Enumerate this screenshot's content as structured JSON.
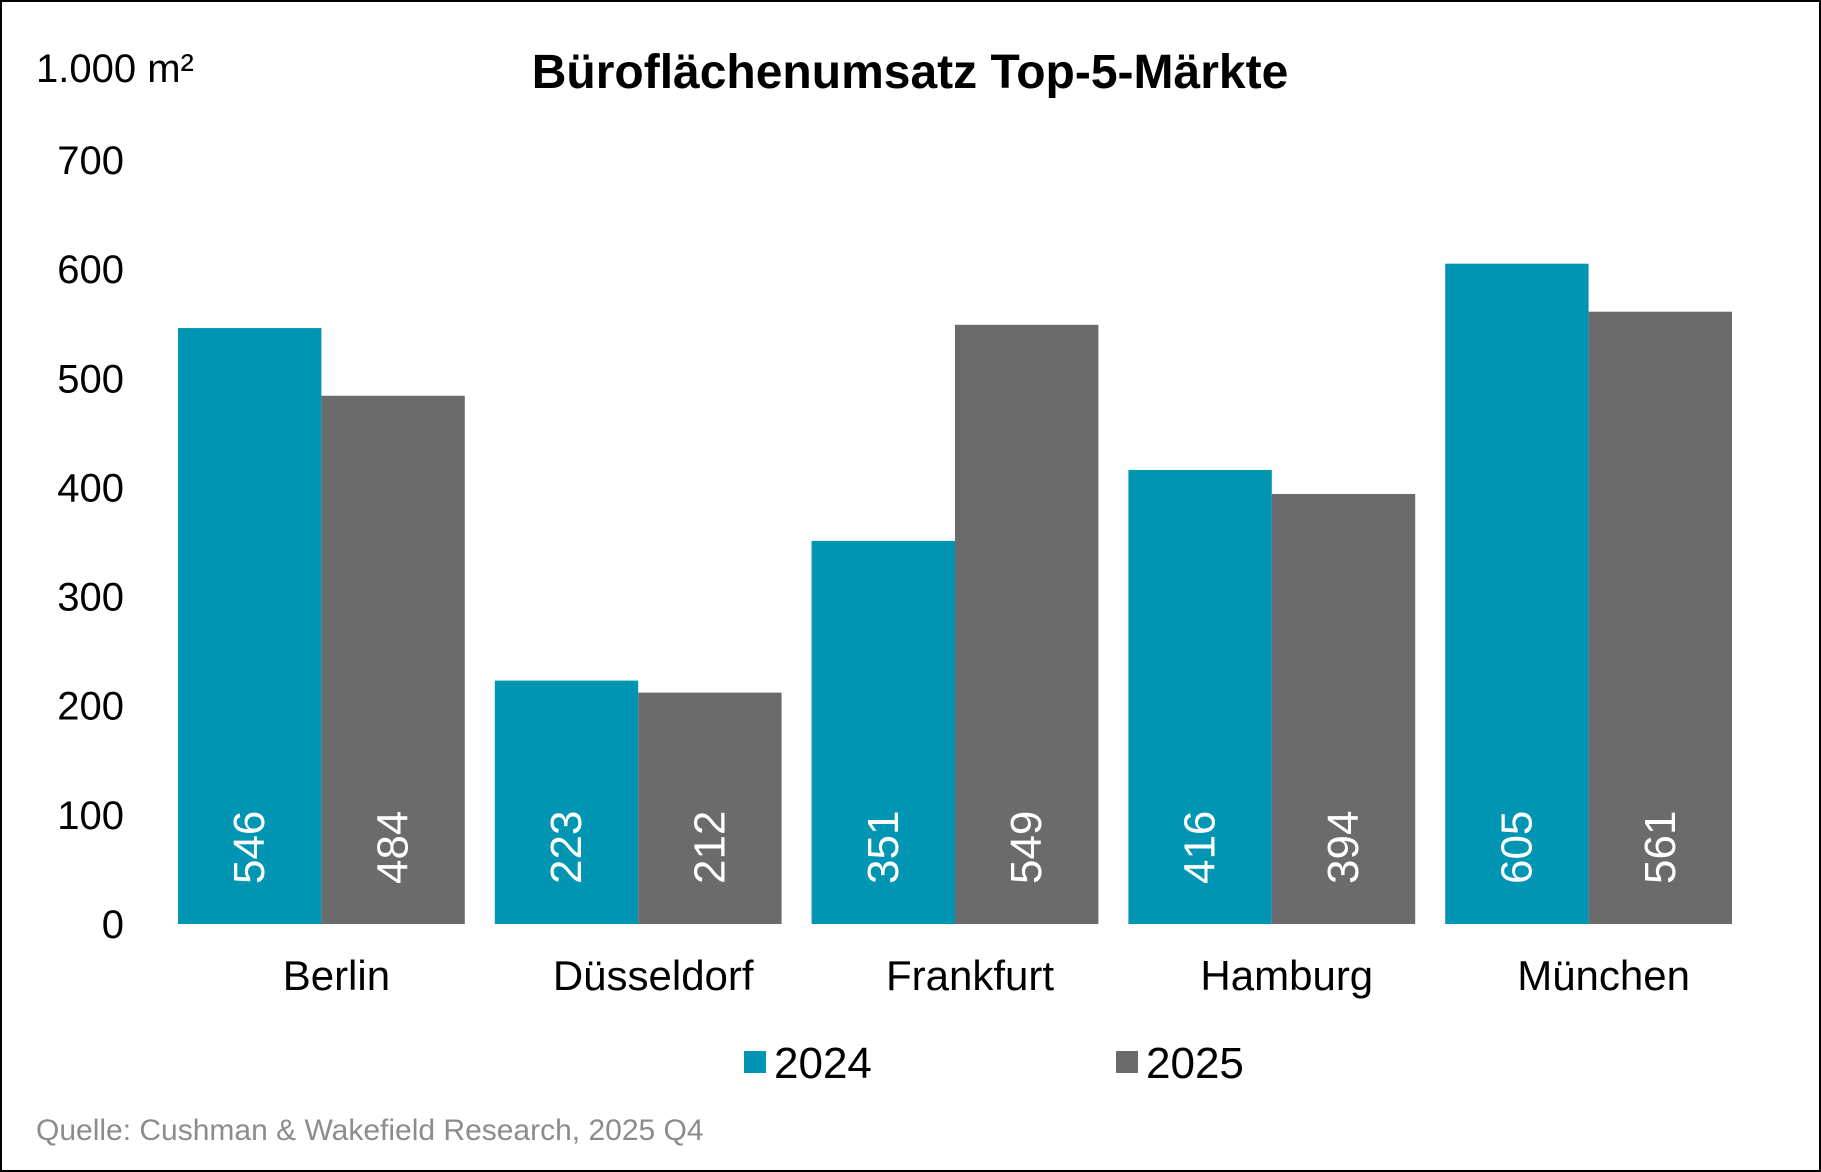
{
  "chart_data": {
    "type": "bar",
    "title": "Büroflächenumsatz Top-5-Märkte",
    "ylabel": "1.000 m²",
    "xlabel": "",
    "ylim": [
      0,
      700
    ],
    "yticks": [
      0,
      100,
      200,
      300,
      400,
      500,
      600,
      700
    ],
    "grid": false,
    "legend_position": "bottom",
    "categories": [
      "Berlin",
      "Düsseldorf",
      "Frankfurt",
      "Hamburg",
      "München"
    ],
    "series": [
      {
        "name": "2024",
        "color": "#0095B3",
        "values": [
          546,
          223,
          351,
          416,
          605
        ]
      },
      {
        "name": "2025",
        "color": "#6B6B6B",
        "values": [
          484,
          212,
          549,
          394,
          561
        ]
      }
    ],
    "data_labels": "inside-bottom-rotated",
    "source": "Quelle: Cushman & Wakefield Research, 2025 Q4"
  }
}
